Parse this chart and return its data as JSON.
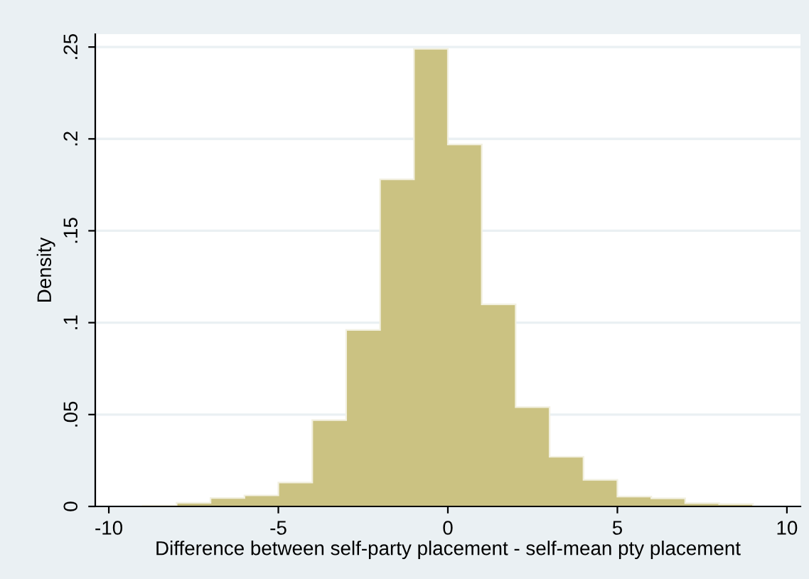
{
  "chart_data": {
    "type": "histogram",
    "xlabel": "Difference between self-party placement - self-mean pty placement",
    "ylabel": "Density",
    "bins": [
      -9,
      -8,
      -7,
      -6,
      -5,
      -4,
      -3,
      -2,
      -1,
      0,
      1,
      2,
      3,
      4,
      5,
      6,
      7,
      8,
      9
    ],
    "values": [
      0.0005,
      0.002,
      0.0046,
      0.006,
      0.013,
      0.047,
      0.096,
      0.178,
      0.249,
      0.197,
      0.11,
      0.054,
      0.027,
      0.0145,
      0.0054,
      0.0044,
      0.0018,
      0.0013
    ],
    "color": "#cbc282",
    "xlim": [
      -10.4,
      10.4
    ],
    "ylim": [
      0,
      0.257
    ],
    "xticks": [
      -10,
      -5,
      0,
      5,
      10
    ],
    "yticks": [
      0,
      {
        "value": 0.05,
        "label": ".05"
      },
      {
        "value": 0.1,
        "label": ".1"
      },
      {
        "value": 0.15,
        "label": ".15"
      },
      {
        "value": 0.2,
        "label": ".2"
      },
      {
        "value": 0.25,
        "label": ".25"
      }
    ],
    "grid": "y"
  }
}
